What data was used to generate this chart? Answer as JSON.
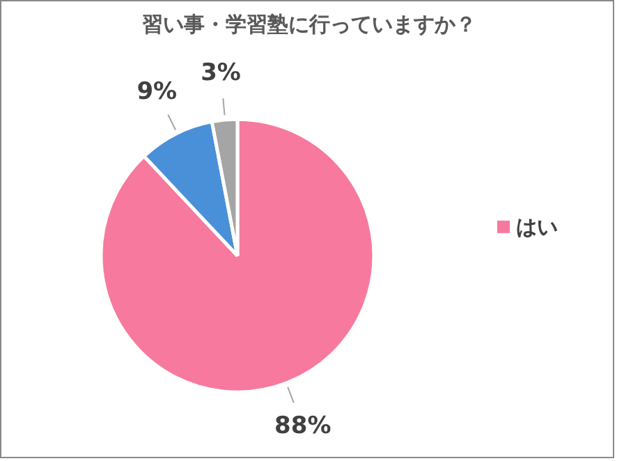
{
  "chart_data": {
    "type": "pie",
    "title": "習い事・学習塾に行っていますか？",
    "categories": [
      "はい",
      null,
      null
    ],
    "values": [
      88,
      9,
      3
    ],
    "colors": [
      "#f7799e",
      "#4a90d9",
      "#a5a5a5"
    ],
    "value_labels": [
      "88%",
      "9%",
      "3%"
    ],
    "legend": "right"
  }
}
